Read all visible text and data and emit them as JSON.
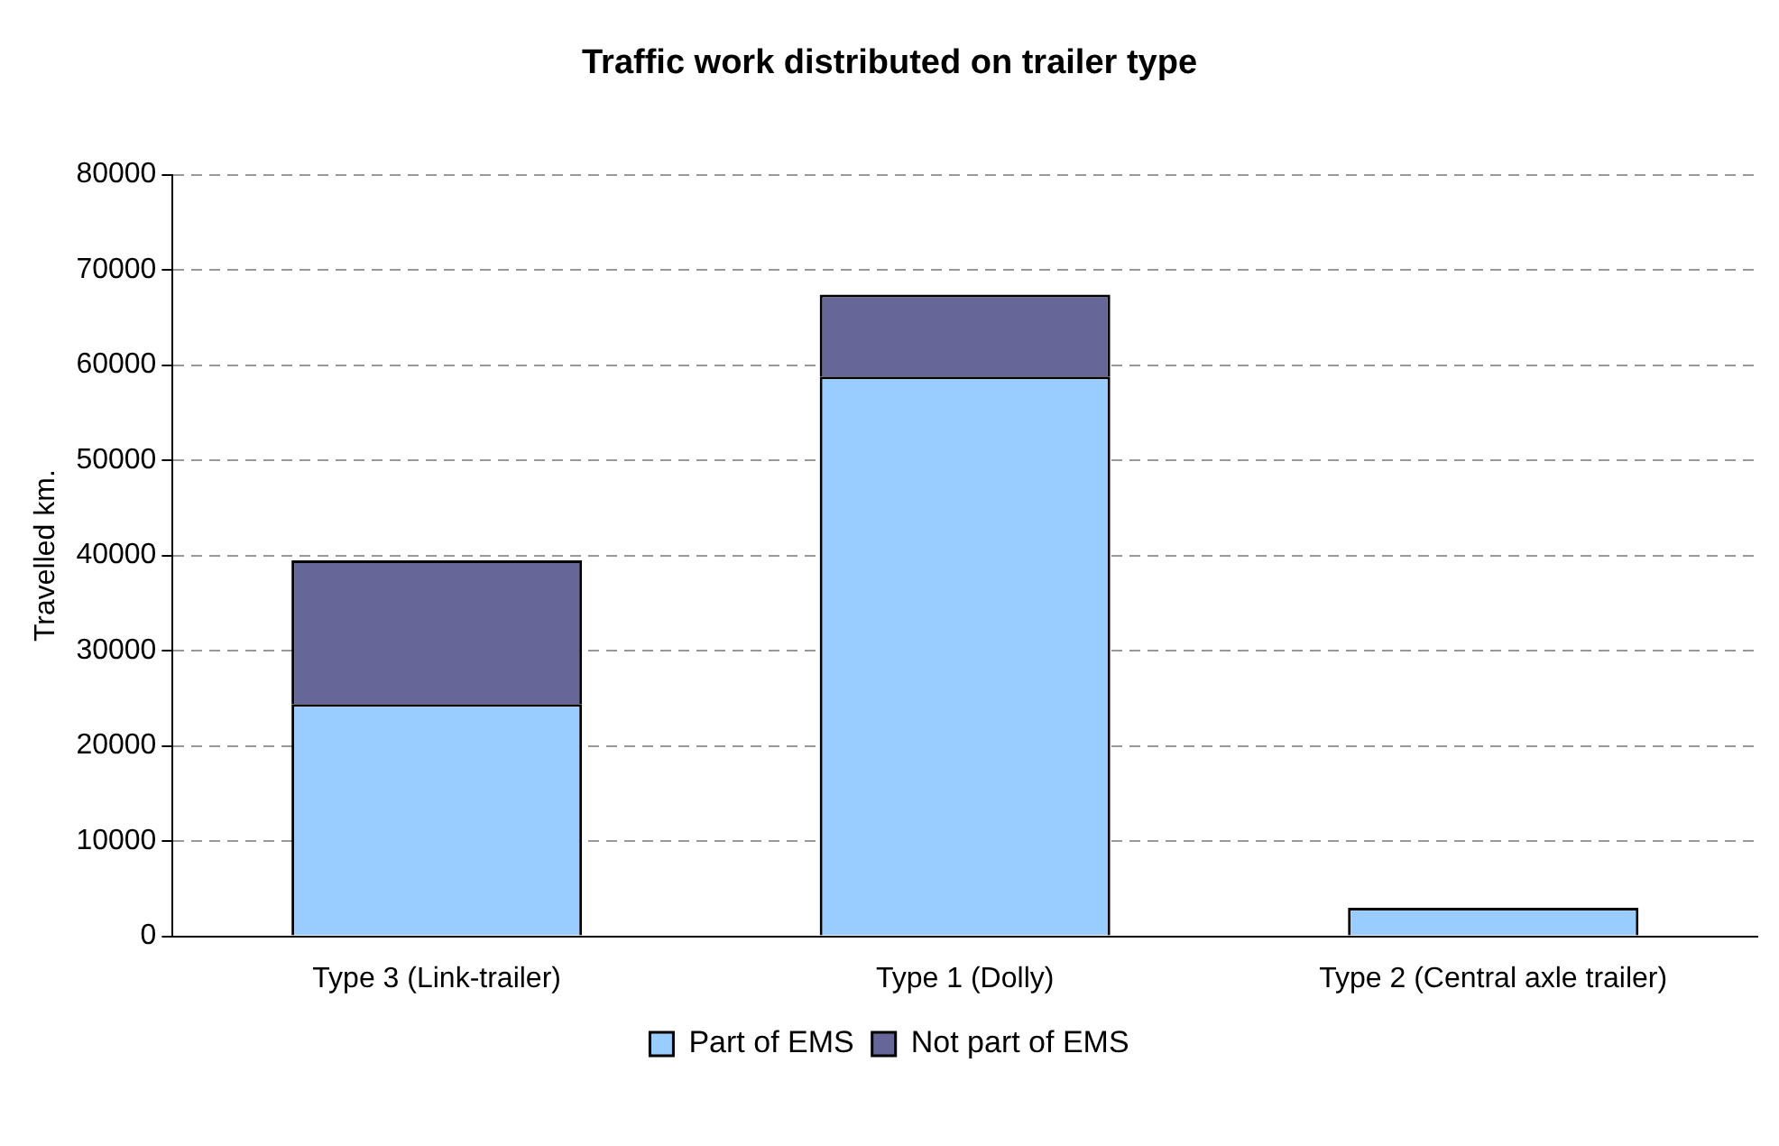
{
  "chart_data": {
    "type": "bar",
    "title": "Traffic work distributed on trailer type",
    "ylabel": "Travelled km.",
    "categories": [
      "Type 3 (Link-trailer)",
      "Type 1 (Dolly)",
      "Type 2 (Central axle trailer)"
    ],
    "series": [
      {
        "name": "Part of EMS",
        "color": "#99ccff",
        "values": [
          24400,
          58800,
          3000
        ]
      },
      {
        "name": "Not part of EMS",
        "color": "#666699",
        "values": [
          15100,
          8600,
          0
        ]
      }
    ],
    "stacked": true,
    "ylim": [
      0,
      80000
    ],
    "yticks": [
      0,
      10000,
      20000,
      30000,
      40000,
      50000,
      60000,
      70000,
      80000
    ],
    "grid": "y",
    "legend": "bottom"
  }
}
